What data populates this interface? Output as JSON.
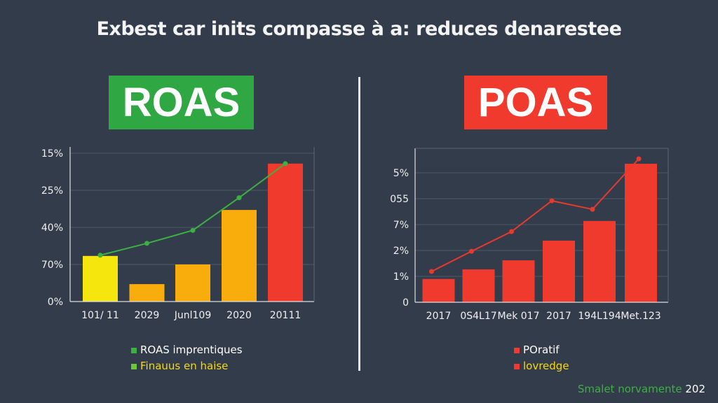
{
  "title": "Exbest car inits compasse à a: reduces denarestee",
  "badges": {
    "left": "ROAS",
    "right": "POAS"
  },
  "colors": {
    "background": "#323c4a",
    "roas_badge": "#2fa844",
    "poas_badge": "#f03a2e",
    "yellow": "#f5e60e",
    "orange": "#f9ad0c",
    "red": "#f03a2e",
    "green_line": "#3cb043"
  },
  "footer": {
    "green_text": "Smalet norvamente",
    "white_text": "202"
  },
  "chart_data": [
    {
      "type": "bar",
      "categories": [
        "101/ 11",
        "2029",
        "Junl109",
        "2020",
        "20111"
      ],
      "yticks": [
        "0%",
        "70%",
        "40%",
        "25%",
        "15%"
      ],
      "values": [
        1.23,
        0.47,
        1.0,
        2.47,
        3.72
      ],
      "bar_colors": [
        "#f5e60e",
        "#f9ad0c",
        "#f9ad0c",
        "#f9ad0c",
        "#f03a2e"
      ],
      "line": {
        "values": [
          1.25,
          1.57,
          1.92,
          2.8,
          3.72
        ],
        "color": "#3cb043"
      },
      "ylim": [
        0,
        4.15
      ],
      "grid": true,
      "legend": [
        {
          "label": "ROAS imprentiques",
          "swatch": "#3cb043",
          "text_color": "#ffffff"
        },
        {
          "label": "Finauus en haise",
          "swatch": "#6cc83a",
          "text_color": "#f5d90e"
        }
      ],
      "legend_placement": "bottom"
    },
    {
      "type": "bar",
      "categories": [
        "2017",
        "0S4L17",
        "Mek 017",
        "2017",
        "194L194",
        "Met.123"
      ],
      "yticks": [
        "0",
        "1%",
        "2%",
        "7%",
        "055",
        "5%"
      ],
      "values": [
        0.9,
        1.27,
        1.62,
        2.38,
        3.14,
        5.35
      ],
      "bar_colors": [
        "#f03a2e",
        "#f03a2e",
        "#f03a2e",
        "#f03a2e",
        "#f03a2e",
        "#f03a2e"
      ],
      "line": {
        "values": [
          1.19,
          1.97,
          2.73,
          3.92,
          3.59,
          5.54
        ],
        "color": "#e8392e"
      },
      "ylim": [
        0,
        5.95
      ],
      "grid": true,
      "legend": [
        {
          "label": "POratif",
          "swatch": "#f03a2e",
          "text_color": "#ffffff"
        },
        {
          "label": "lovredge",
          "swatch": "#f03a2e",
          "text_color": "#f5d90e"
        }
      ],
      "legend_placement": "bottom"
    }
  ]
}
